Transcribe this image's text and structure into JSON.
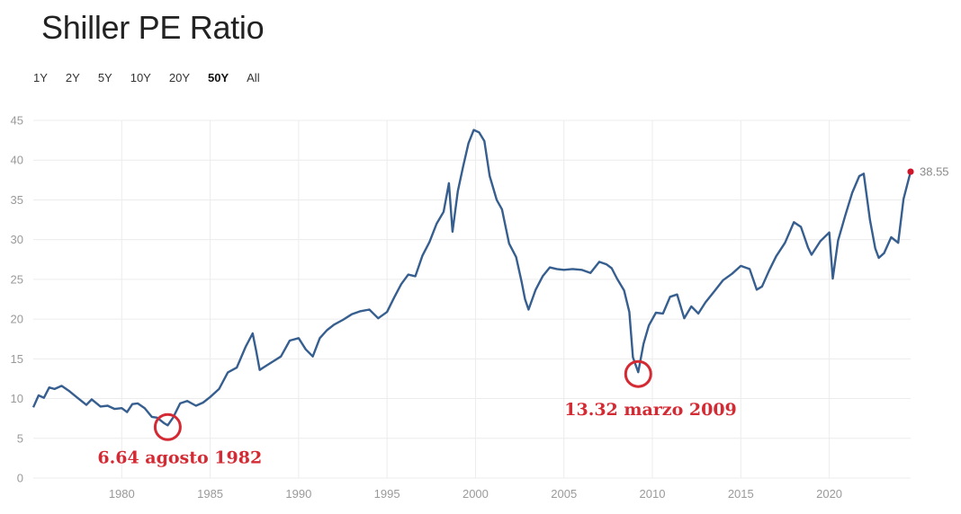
{
  "page": {
    "title": "Shiller PE Ratio",
    "ranges": [
      {
        "label": "1Y",
        "active": false
      },
      {
        "label": "2Y",
        "active": false
      },
      {
        "label": "5Y",
        "active": false
      },
      {
        "label": "10Y",
        "active": false
      },
      {
        "label": "20Y",
        "active": false
      },
      {
        "label": "50Y",
        "active": true
      },
      {
        "label": "All",
        "active": false
      }
    ]
  },
  "colors": {
    "line": "#365e8f",
    "grid": "#ececec",
    "annotation": "#d42a33",
    "last_point": "#d0142a"
  },
  "chart_data": {
    "type": "line",
    "title": "Shiller PE Ratio",
    "xlabel": "",
    "ylabel": "",
    "xlim": [
      1975,
      2024.6
    ],
    "ylim": [
      0,
      45
    ],
    "x_ticks": [
      1980,
      1985,
      1990,
      1995,
      2000,
      2005,
      2010,
      2015,
      2020
    ],
    "y_ticks": [
      0,
      5,
      10,
      15,
      20,
      25,
      30,
      35,
      40,
      45
    ],
    "grid": true,
    "series": [
      {
        "x": [
          1975.0,
          1975.3,
          1975.6,
          1975.9,
          1976.2,
          1976.6,
          1977.0,
          1977.5,
          1978.0,
          1978.3,
          1978.8,
          1979.2,
          1979.6,
          1980.0,
          1980.3,
          1980.6,
          1980.9,
          1981.3,
          1981.7,
          1982.0,
          1982.4,
          1982.6,
          1982.9,
          1983.3,
          1983.7,
          1984.2,
          1984.6,
          1985.0,
          1985.5,
          1986.0,
          1986.5,
          1987.0,
          1987.4,
          1987.6,
          1987.8,
          1988.0,
          1988.5,
          1989.0,
          1989.5,
          1990.0,
          1990.4,
          1990.8,
          1991.2,
          1991.6,
          1992.0,
          1992.5,
          1993.0,
          1993.5,
          1994.0,
          1994.5,
          1995.0,
          1995.4,
          1995.8,
          1996.2,
          1996.6,
          1997.0,
          1997.4,
          1997.8,
          1998.2,
          1998.5,
          1998.7,
          1999.0,
          1999.3,
          1999.6,
          1999.9,
          2000.2,
          2000.5,
          2000.8,
          2001.2,
          2001.5,
          2001.9,
          2002.3,
          2002.6,
          2002.8,
          2003.0,
          2003.4,
          2003.8,
          2004.2,
          2004.6,
          2005.0,
          2005.5,
          2006.0,
          2006.5,
          2007.0,
          2007.4,
          2007.7,
          2008.0,
          2008.4,
          2008.7,
          2008.9,
          2009.2,
          2009.5,
          2009.8,
          2010.2,
          2010.6,
          2011.0,
          2011.4,
          2011.8,
          2012.2,
          2012.6,
          2013.0,
          2013.5,
          2014.0,
          2014.5,
          2015.0,
          2015.5,
          2015.9,
          2016.2,
          2016.6,
          2017.0,
          2017.5,
          2018.0,
          2018.4,
          2018.8,
          2019.0,
          2019.5,
          2020.0,
          2020.2,
          2020.5,
          2020.9,
          2021.3,
          2021.7,
          2021.95,
          2022.3,
          2022.6,
          2022.8,
          2023.1,
          2023.5,
          2023.9,
          2024.2,
          2024.6
        ],
        "values": [
          8.9,
          10.4,
          10.1,
          11.4,
          11.2,
          11.6,
          11.0,
          10.1,
          9.2,
          9.9,
          9.0,
          9.1,
          8.7,
          8.8,
          8.3,
          9.3,
          9.4,
          8.8,
          7.7,
          7.6,
          6.9,
          6.64,
          7.6,
          9.4,
          9.7,
          9.1,
          9.5,
          10.2,
          11.2,
          13.3,
          13.9,
          16.5,
          18.2,
          16.0,
          13.6,
          13.9,
          14.6,
          15.3,
          17.3,
          17.6,
          16.2,
          15.3,
          17.6,
          18.6,
          19.3,
          19.9,
          20.6,
          21.0,
          21.2,
          20.1,
          20.9,
          22.7,
          24.4,
          25.6,
          25.4,
          28.0,
          29.7,
          32.0,
          33.5,
          37.1,
          31.0,
          36.1,
          39.2,
          42.1,
          43.8,
          43.5,
          42.4,
          38.0,
          35.0,
          33.8,
          29.5,
          27.8,
          24.8,
          22.5,
          21.2,
          23.7,
          25.4,
          26.5,
          26.3,
          26.2,
          26.3,
          26.2,
          25.8,
          27.2,
          26.9,
          26.4,
          25.1,
          23.6,
          20.9,
          15.2,
          13.32,
          16.9,
          19.2,
          20.8,
          20.7,
          22.8,
          23.1,
          20.1,
          21.6,
          20.7,
          22.1,
          23.5,
          24.9,
          25.7,
          26.7,
          26.3,
          23.7,
          24.1,
          26.1,
          27.9,
          29.6,
          32.2,
          31.6,
          29.0,
          28.1,
          29.8,
          30.9,
          25.1,
          29.9,
          33.0,
          35.9,
          38.0,
          38.3,
          32.5,
          28.9,
          27.7,
          28.3,
          30.3,
          29.6,
          35.1,
          38.55
        ]
      }
    ],
    "last_value_label": "38.55",
    "annotations": [
      {
        "text": "6.64 agosto 1982",
        "x": 1982.6,
        "y": 6.64
      },
      {
        "text": "13.32 marzo 2009",
        "x": 2009.2,
        "y": 13.32
      }
    ]
  }
}
